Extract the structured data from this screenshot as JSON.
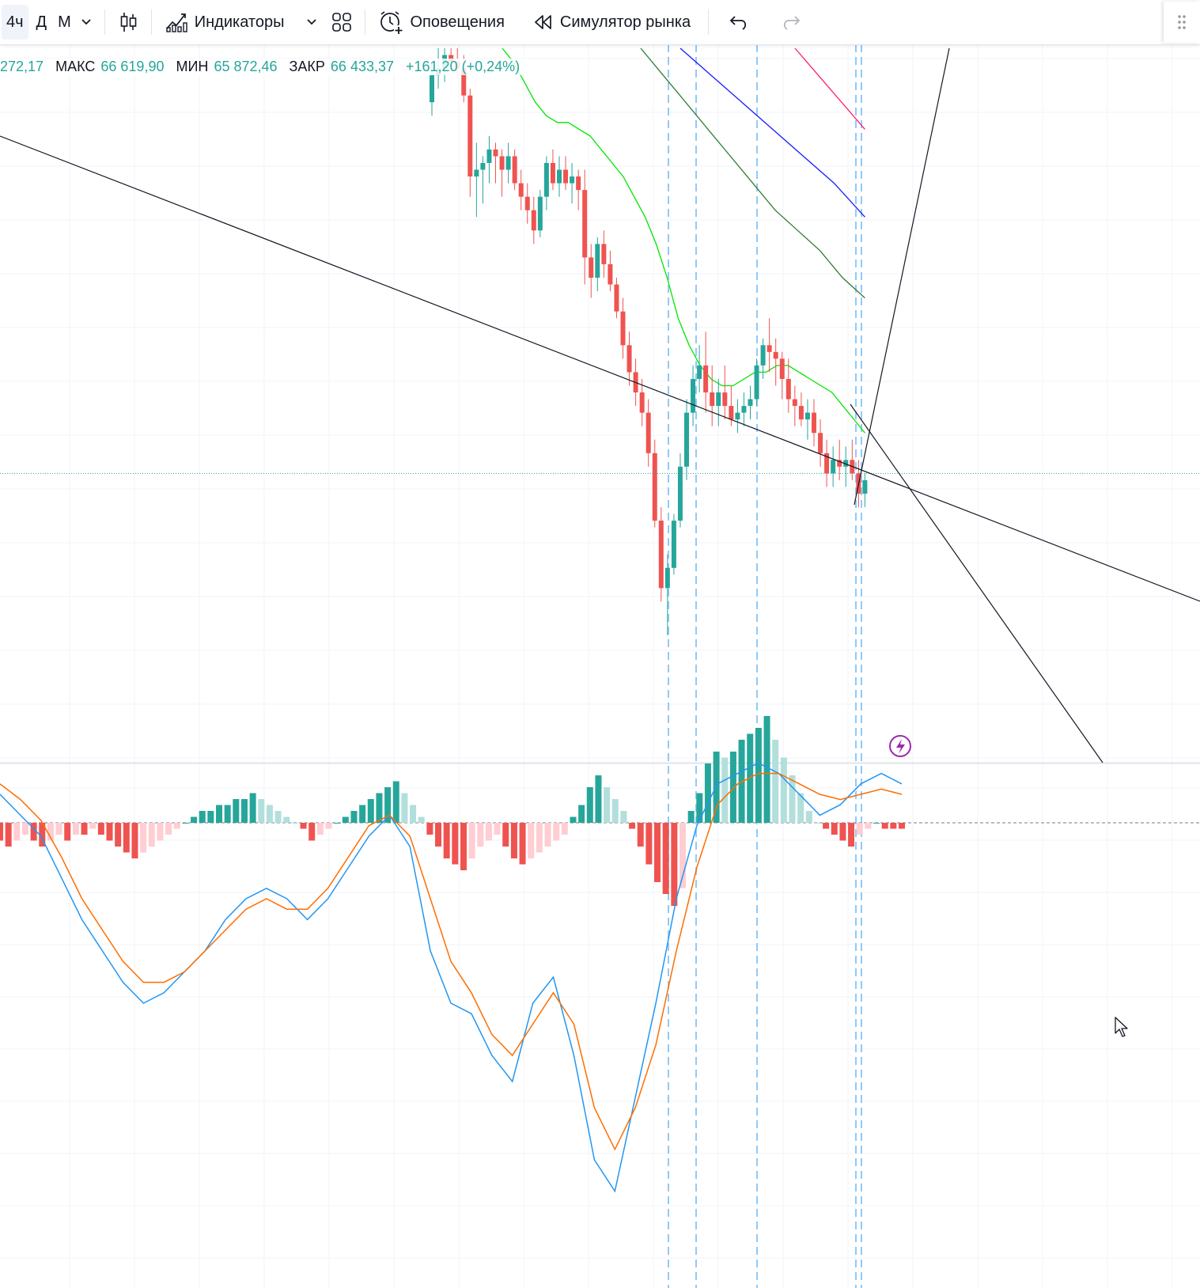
{
  "toolbar": {
    "intervals": [
      "4ч",
      "Д",
      "М"
    ],
    "active_interval": "4ч",
    "indicators_label": "Индикаторы",
    "alerts_label": "Оповещения",
    "replay_label": "Симулятор рынка"
  },
  "legend": {
    "open_value": "272,17",
    "high_label": "МАКС",
    "high_value": "66 619,90",
    "low_label": "МИН",
    "low_value": "65 872,46",
    "close_label": "ЗАКР",
    "close_value": "66 433,37",
    "change": "+161,20 (+0,24%)"
  },
  "colors": {
    "up": "#26a69a",
    "down": "#ef5350",
    "ma_fast": "#00e600",
    "ma_mid": "#2e7d32",
    "ma_slow": "#1a1aff",
    "ma_red": "#ff1f6b",
    "macd": "#2196f3",
    "signal": "#ff6d00",
    "hist_up_strong": "#26a69a",
    "hist_up_weak": "#b2dfdb",
    "hist_down_strong": "#ef5350",
    "hist_down_weak": "#ffcdd2",
    "vline": "#90caf9",
    "trendline": "#131722"
  },
  "icons": {
    "interval_dropdown": "chevron-down-icon",
    "chart_style": "candles-icon",
    "indicators": "indicators-icon",
    "templates": "templates-grid-icon",
    "alerts": "alarm-clock-icon",
    "replay": "rewind-icon",
    "undo": "undo-icon",
    "redo": "redo-icon",
    "lightning": "lightning-icon",
    "grip": "drag-grip-icon"
  },
  "chart_data": [
    {
      "type": "candlestick",
      "title": "",
      "note": "relative price levels (0 = chart bottom, 100 = chart top)",
      "candles": [
        [
          92,
          98,
          90,
          96
        ],
        [
          96,
          100,
          94,
          97
        ],
        [
          97,
          100,
          95,
          99
        ],
        [
          99,
          100,
          97,
          98
        ],
        [
          98,
          100,
          96,
          97
        ],
        [
          97,
          99,
          92,
          93
        ],
        [
          93,
          94,
          78,
          81
        ],
        [
          81,
          86,
          75,
          82
        ],
        [
          82,
          84,
          77,
          83
        ],
        [
          83,
          87,
          80,
          85
        ],
        [
          85,
          86,
          80,
          84
        ],
        [
          84,
          85,
          78,
          82
        ],
        [
          82,
          86,
          80,
          84
        ],
        [
          84,
          85,
          79,
          80
        ],
        [
          80,
          82,
          76,
          78
        ],
        [
          78,
          80,
          74,
          76
        ],
        [
          76,
          78,
          71,
          73
        ],
        [
          73,
          79,
          72,
          78
        ],
        [
          78,
          84,
          76,
          83
        ],
        [
          83,
          85,
          79,
          80
        ],
        [
          80,
          84,
          78,
          82
        ],
        [
          82,
          84,
          79,
          80
        ],
        [
          80,
          83,
          77,
          81
        ],
        [
          81,
          82,
          76,
          79
        ],
        [
          79,
          82,
          65,
          69
        ],
        [
          69,
          71,
          63,
          66
        ],
        [
          66,
          72,
          64,
          71
        ],
        [
          71,
          73,
          66,
          68
        ],
        [
          68,
          70,
          64,
          65
        ],
        [
          65,
          66,
          60,
          61
        ],
        [
          61,
          63,
          54,
          56
        ],
        [
          56,
          58,
          50,
          52
        ],
        [
          52,
          54,
          47,
          49
        ],
        [
          49,
          51,
          44,
          46
        ],
        [
          46,
          48,
          38,
          40
        ],
        [
          40,
          42,
          29,
          30
        ],
        [
          30,
          32,
          18,
          20
        ],
        [
          20,
          25,
          13,
          23
        ],
        [
          23,
          31,
          22,
          30
        ],
        [
          30,
          40,
          29,
          38
        ],
        [
          38,
          48,
          36,
          46
        ],
        [
          46,
          53,
          44,
          51
        ],
        [
          51,
          56,
          49,
          53
        ],
        [
          53,
          58,
          46,
          49
        ],
        [
          49,
          53,
          44,
          47
        ],
        [
          47,
          51,
          44,
          49
        ],
        [
          49,
          53,
          45,
          47
        ],
        [
          47,
          50,
          44,
          45
        ],
        [
          45,
          48,
          43,
          46
        ],
        [
          46,
          49,
          44,
          47
        ],
        [
          47,
          50,
          45,
          48
        ],
        [
          48,
          54,
          47,
          53
        ],
        [
          53,
          57,
          51,
          56
        ],
        [
          56,
          60,
          52,
          55
        ],
        [
          55,
          57,
          50,
          54
        ],
        [
          54,
          55,
          48,
          51
        ],
        [
          51,
          54,
          46,
          48
        ],
        [
          48,
          50,
          44,
          47
        ],
        [
          47,
          49,
          44,
          45
        ],
        [
          45,
          48,
          42,
          46
        ],
        [
          46,
          48,
          41,
          43
        ],
        [
          43,
          45,
          38,
          40
        ],
        [
          40,
          42,
          35,
          37
        ],
        [
          37,
          41,
          35,
          39
        ],
        [
          39,
          42,
          36,
          38
        ],
        [
          38,
          41,
          35,
          39
        ],
        [
          39,
          42,
          36,
          37
        ],
        [
          37,
          39,
          32,
          34
        ],
        [
          34,
          37,
          32,
          36
        ]
      ],
      "moving_averages": [
        {
          "name": "",
          "color": "#00e600",
          "values": [
            100,
            98,
            95,
            92,
            90,
            89,
            89,
            88,
            87,
            85,
            83,
            81,
            78,
            75,
            71,
            66,
            60,
            56,
            53,
            51,
            50,
            50,
            51,
            52,
            52,
            53,
            53,
            52,
            51,
            50,
            49,
            47,
            45,
            43
          ]
        },
        {
          "name": "",
          "color": "#2e7d32",
          "values": [
            100,
            96,
            92,
            88,
            84,
            80,
            76,
            73,
            70,
            66,
            63
          ]
        },
        {
          "name": "",
          "color": "#1a1aff",
          "values": [
            100,
            96,
            92,
            88,
            84,
            80,
            75
          ]
        },
        {
          "name": "",
          "color": "#ff1f6b",
          "values": [
            100,
            97,
            94,
            91,
            88
          ]
        }
      ],
      "last_price_level": 37
    },
    {
      "type": "bar",
      "title": "",
      "note": "MACD histogram (relative units)",
      "values": [
        -3,
        -4,
        -3,
        -2,
        -3,
        -4,
        -3,
        -2,
        -3,
        -2,
        -2,
        -1,
        -2,
        -3,
        -4,
        -5,
        -6,
        -5,
        -4,
        -3,
        -2,
        -1,
        0,
        1,
        2,
        2,
        3,
        3,
        4,
        4,
        5,
        4,
        3,
        2,
        1,
        0,
        -1,
        -3,
        -2,
        -1,
        0,
        1,
        2,
        3,
        4,
        5,
        6,
        7,
        5,
        3,
        1,
        -2,
        -4,
        -6,
        -7,
        -8,
        -6,
        -4,
        -3,
        -2,
        -4,
        -6,
        -7,
        -6,
        -5,
        -4,
        -3,
        -2,
        1,
        3,
        6,
        8,
        6,
        4,
        2,
        -1,
        -4,
        -7,
        -10,
        -12,
        -14,
        -11,
        2,
        5,
        10,
        12,
        11,
        12,
        14,
        15,
        16,
        18,
        14,
        11,
        8,
        5,
        2,
        0,
        -1,
        -2,
        -3,
        -4,
        -2,
        -1,
        0,
        -1,
        -1,
        -1
      ]
    },
    {
      "type": "line",
      "title": "",
      "note": "MACD and signal lines (relative units)",
      "series": [
        {
          "name": "",
          "color": "#2196f3",
          "values": [
            10,
            6,
            2,
            -6,
            -14,
            -20,
            -26,
            -30,
            -28,
            -24,
            -20,
            -14,
            -10,
            -8,
            -10,
            -14,
            -10,
            -4,
            2,
            6,
            0,
            -20,
            -30,
            -32,
            -40,
            -45,
            -30,
            -25,
            -40,
            -60,
            -66,
            -48,
            -30,
            -10,
            4,
            12,
            14,
            16,
            14,
            10,
            6,
            8,
            12,
            14,
            12
          ]
        },
        {
          "name": "",
          "color": "#ff6d00",
          "values": [
            12,
            9,
            5,
            -2,
            -10,
            -16,
            -22,
            -26,
            -26,
            -24,
            -20,
            -16,
            -12,
            -10,
            -12,
            -12,
            -8,
            -2,
            4,
            6,
            2,
            -10,
            -22,
            -28,
            -36,
            -40,
            -34,
            -28,
            -34,
            -50,
            -58,
            -50,
            -38,
            -20,
            -4,
            8,
            12,
            14,
            14,
            12,
            10,
            9,
            10,
            11,
            10
          ]
        }
      ]
    }
  ]
}
